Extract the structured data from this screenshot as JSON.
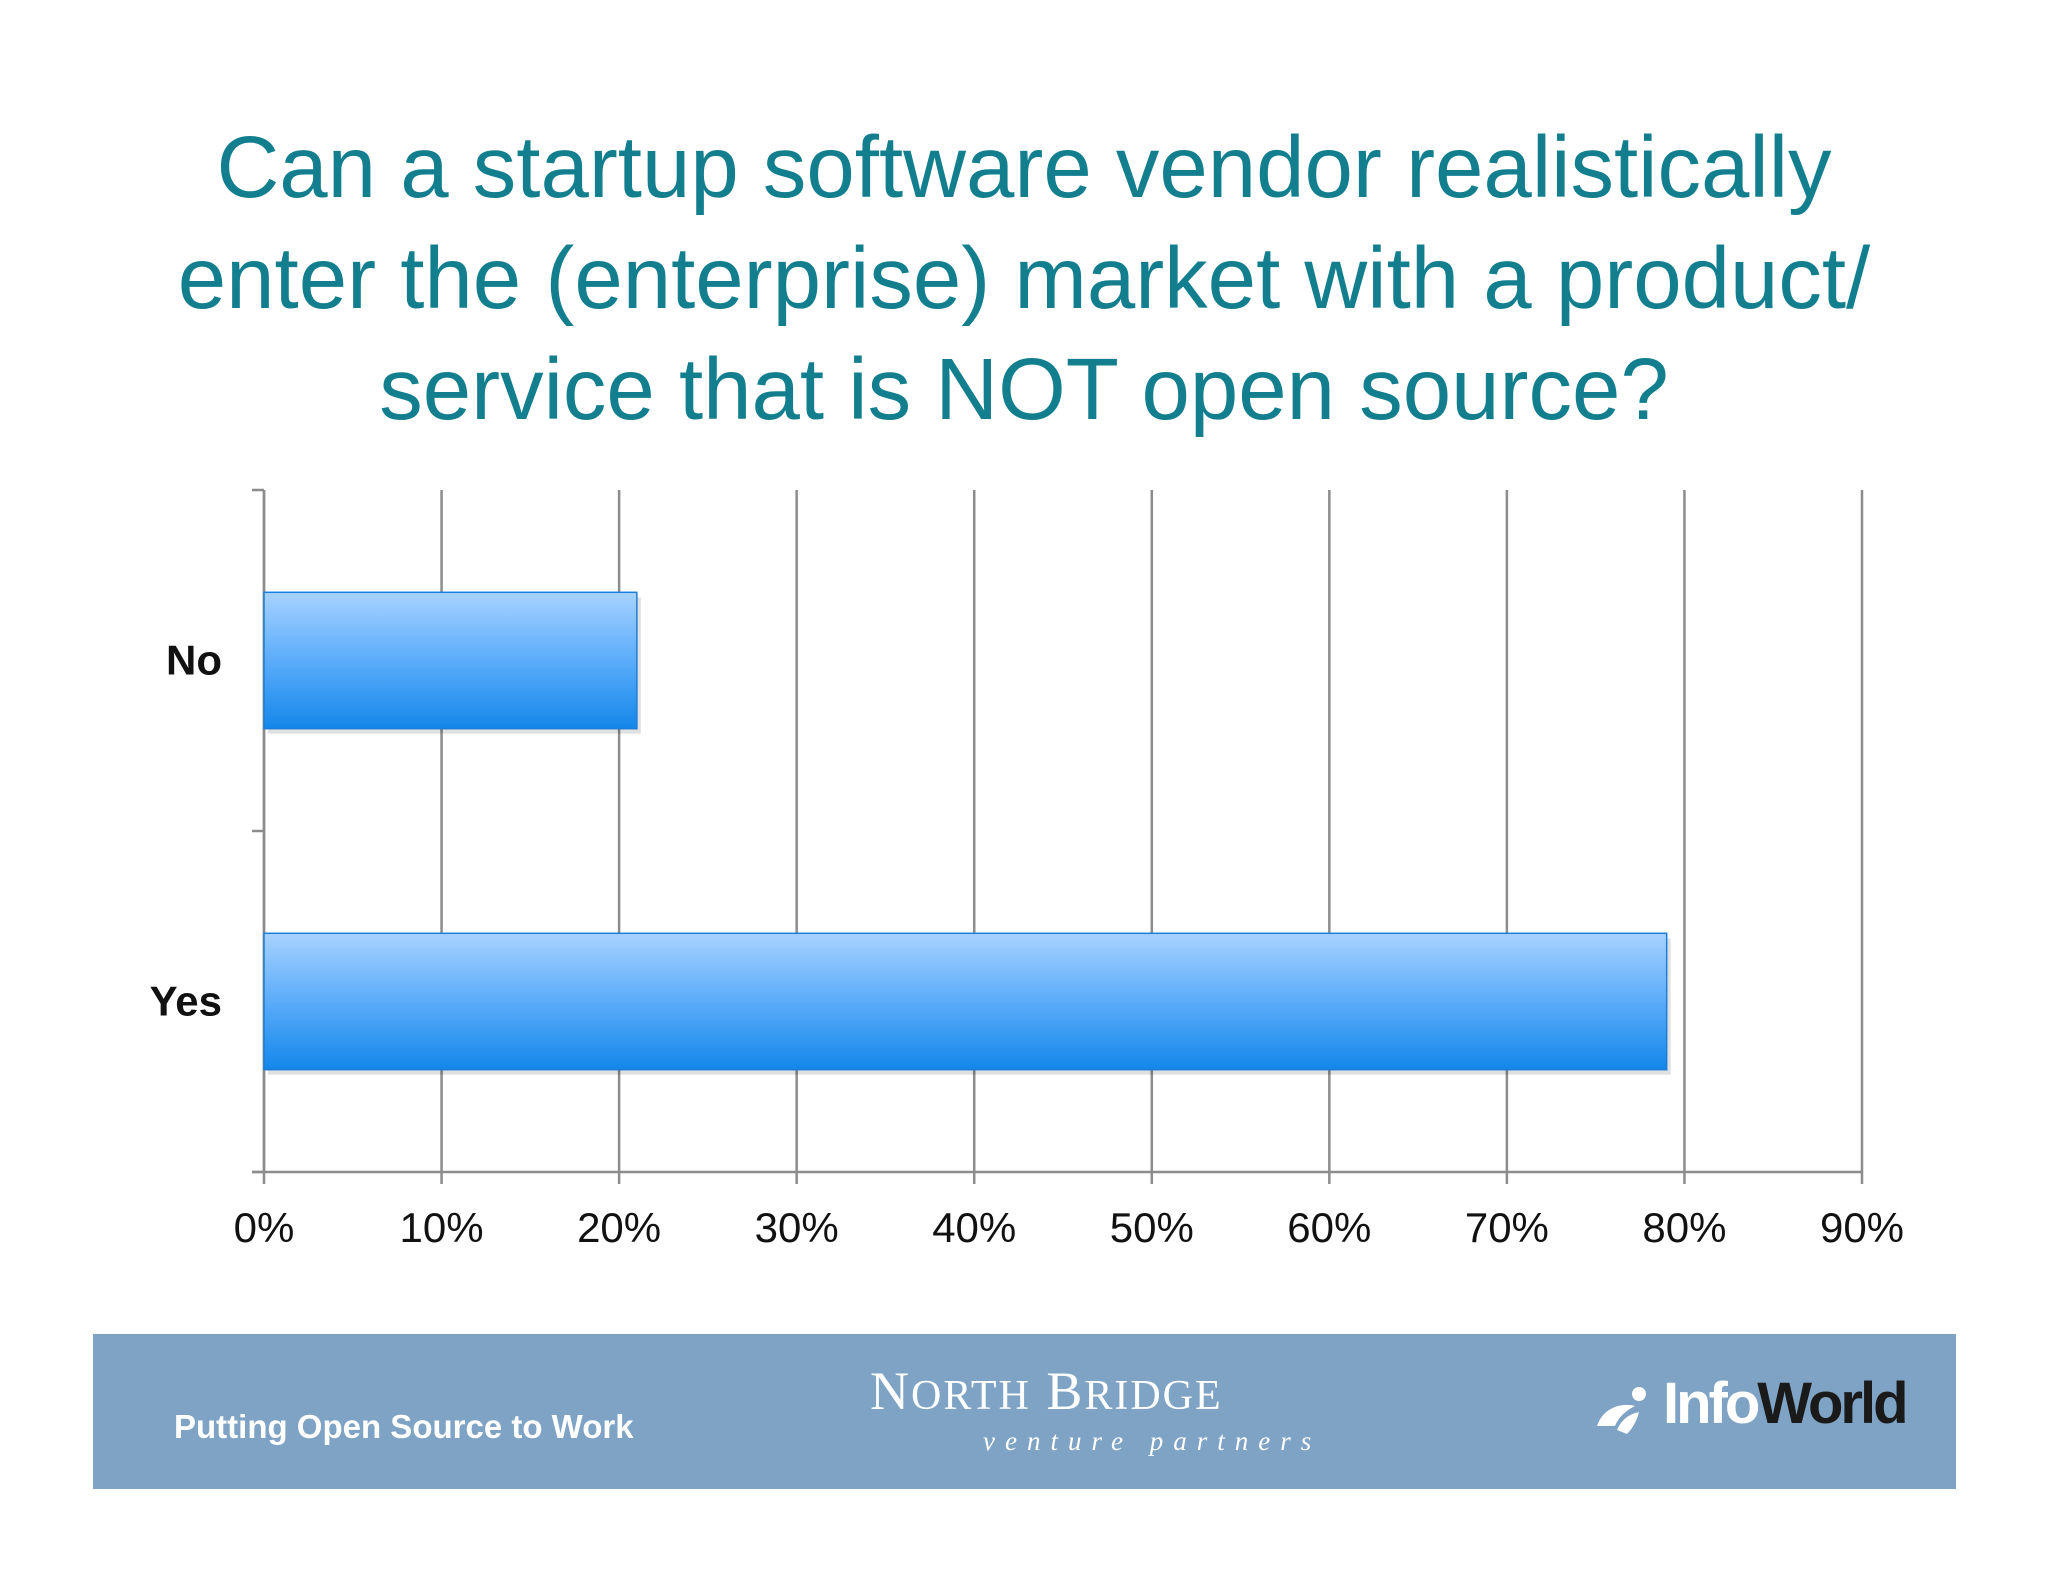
{
  "title_lines": [
    "Can a startup software vendor realistically",
    "enter the (enterprise) market with a product/",
    "service that is NOT open source?"
  ],
  "chart_data": {
    "type": "bar",
    "orientation": "horizontal",
    "title": "Can a startup software vendor realistically enter the (enterprise) market with a product/ service that is NOT open source?",
    "categories": [
      "No",
      "Yes"
    ],
    "values": [
      21,
      79
    ],
    "xlim": [
      0,
      90
    ],
    "x_ticks": [
      "0%",
      "10%",
      "20%",
      "30%",
      "40%",
      "50%",
      "60%",
      "70%",
      "80%",
      "90%"
    ],
    "grid": true,
    "bar_color": "#2a93ee"
  },
  "footer": {
    "tagline": "Putting Open Source to Work",
    "logo_name_initial_1": "N",
    "logo_name_rest_1": "ORTH",
    "logo_name_initial_2": "B",
    "logo_name_rest_2": "RIDGE",
    "logo_sub": "venture partners",
    "logo2_info": "Info",
    "logo2_world": "World",
    "background": "#7ea3c5"
  }
}
